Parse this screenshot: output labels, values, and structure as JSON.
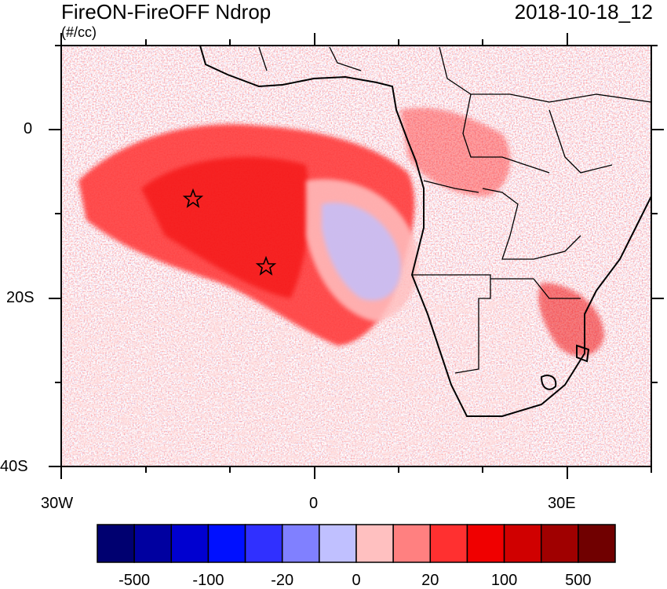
{
  "header": {
    "title": "FireON-FireOFF Ndrop",
    "units": "(#/cc)",
    "datetime": "2018-10-18_12"
  },
  "axes": {
    "lon_labels": [
      "30W",
      "0",
      "30E"
    ],
    "lat_labels": [
      "0",
      "20S",
      "40S"
    ]
  },
  "colorbar": {
    "colors": [
      "#000070",
      "#0000a0",
      "#0000d0",
      "#0010ff",
      "#3030ff",
      "#8080ff",
      "#c0c0ff",
      "#ffc0c0",
      "#ff8080",
      "#ff3030",
      "#f00000",
      "#d00000",
      "#a00000",
      "#700000"
    ],
    "labels": [
      "-500",
      "-100",
      "-20",
      "0",
      "20",
      "100",
      "500"
    ]
  },
  "chart_data": {
    "type": "heatmap",
    "title": "FireON-FireOFF Ndrop",
    "units": "(#/cc)",
    "datetime": "2018-10-18_12",
    "lon_range": [
      -30,
      40
    ],
    "lat_range": [
      -40,
      10
    ],
    "markers": [
      {
        "lon": -14.5,
        "lat": -8,
        "symbol": "star"
      },
      {
        "lon": -5.7,
        "lat": -15.9,
        "symbol": "star"
      }
    ]
  }
}
